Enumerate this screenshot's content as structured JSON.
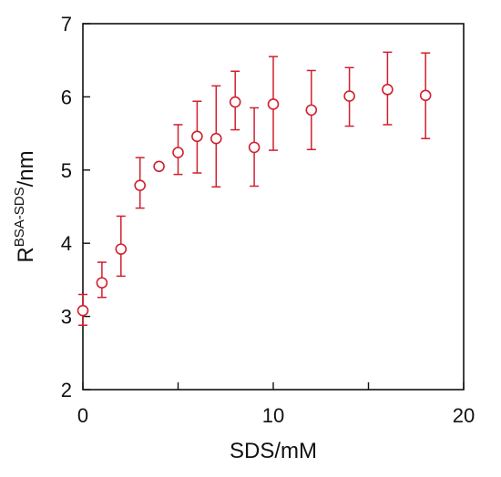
{
  "chart_data": {
    "type": "scatter",
    "xlabel": "SDS/mM",
    "ylabel": {
      "base": "R",
      "superscript": "BSA-SDS",
      "suffix": "/nm"
    },
    "xlim": [
      0,
      20
    ],
    "ylim": [
      2,
      7
    ],
    "xticks": [
      0,
      10,
      20
    ],
    "xminor": [
      5,
      15
    ],
    "yticks": [
      2,
      3,
      4,
      5,
      6,
      7
    ],
    "grid": false,
    "marker": "open-circle",
    "color": "#d0202e",
    "points": [
      {
        "x": 0,
        "y": 3.08,
        "err_low": 0.2,
        "err_high": 0.22
      },
      {
        "x": 1,
        "y": 3.46,
        "err_low": 0.2,
        "err_high": 0.28
      },
      {
        "x": 2,
        "y": 3.92,
        "err_low": 0.37,
        "err_high": 0.45
      },
      {
        "x": 3,
        "y": 4.79,
        "err_low": 0.31,
        "err_high": 0.38
      },
      {
        "x": 4,
        "y": 5.05,
        "err_low": 0,
        "err_high": 0
      },
      {
        "x": 5,
        "y": 5.24,
        "err_low": 0.3,
        "err_high": 0.38
      },
      {
        "x": 6,
        "y": 5.46,
        "err_low": 0.5,
        "err_high": 0.48
      },
      {
        "x": 7,
        "y": 5.43,
        "err_low": 0.66,
        "err_high": 0.72
      },
      {
        "x": 8,
        "y": 5.93,
        "err_low": 0.38,
        "err_high": 0.42
      },
      {
        "x": 9,
        "y": 5.31,
        "err_low": 0.53,
        "err_high": 0.54
      },
      {
        "x": 10,
        "y": 5.9,
        "err_low": 0.63,
        "err_high": 0.65
      },
      {
        "x": 12,
        "y": 5.82,
        "err_low": 0.54,
        "err_high": 0.54
      },
      {
        "x": 14,
        "y": 6.01,
        "err_low": 0.41,
        "err_high": 0.39
      },
      {
        "x": 16,
        "y": 6.1,
        "err_low": 0.48,
        "err_high": 0.51
      },
      {
        "x": 18,
        "y": 6.02,
        "err_low": 0.59,
        "err_high": 0.58
      }
    ]
  }
}
